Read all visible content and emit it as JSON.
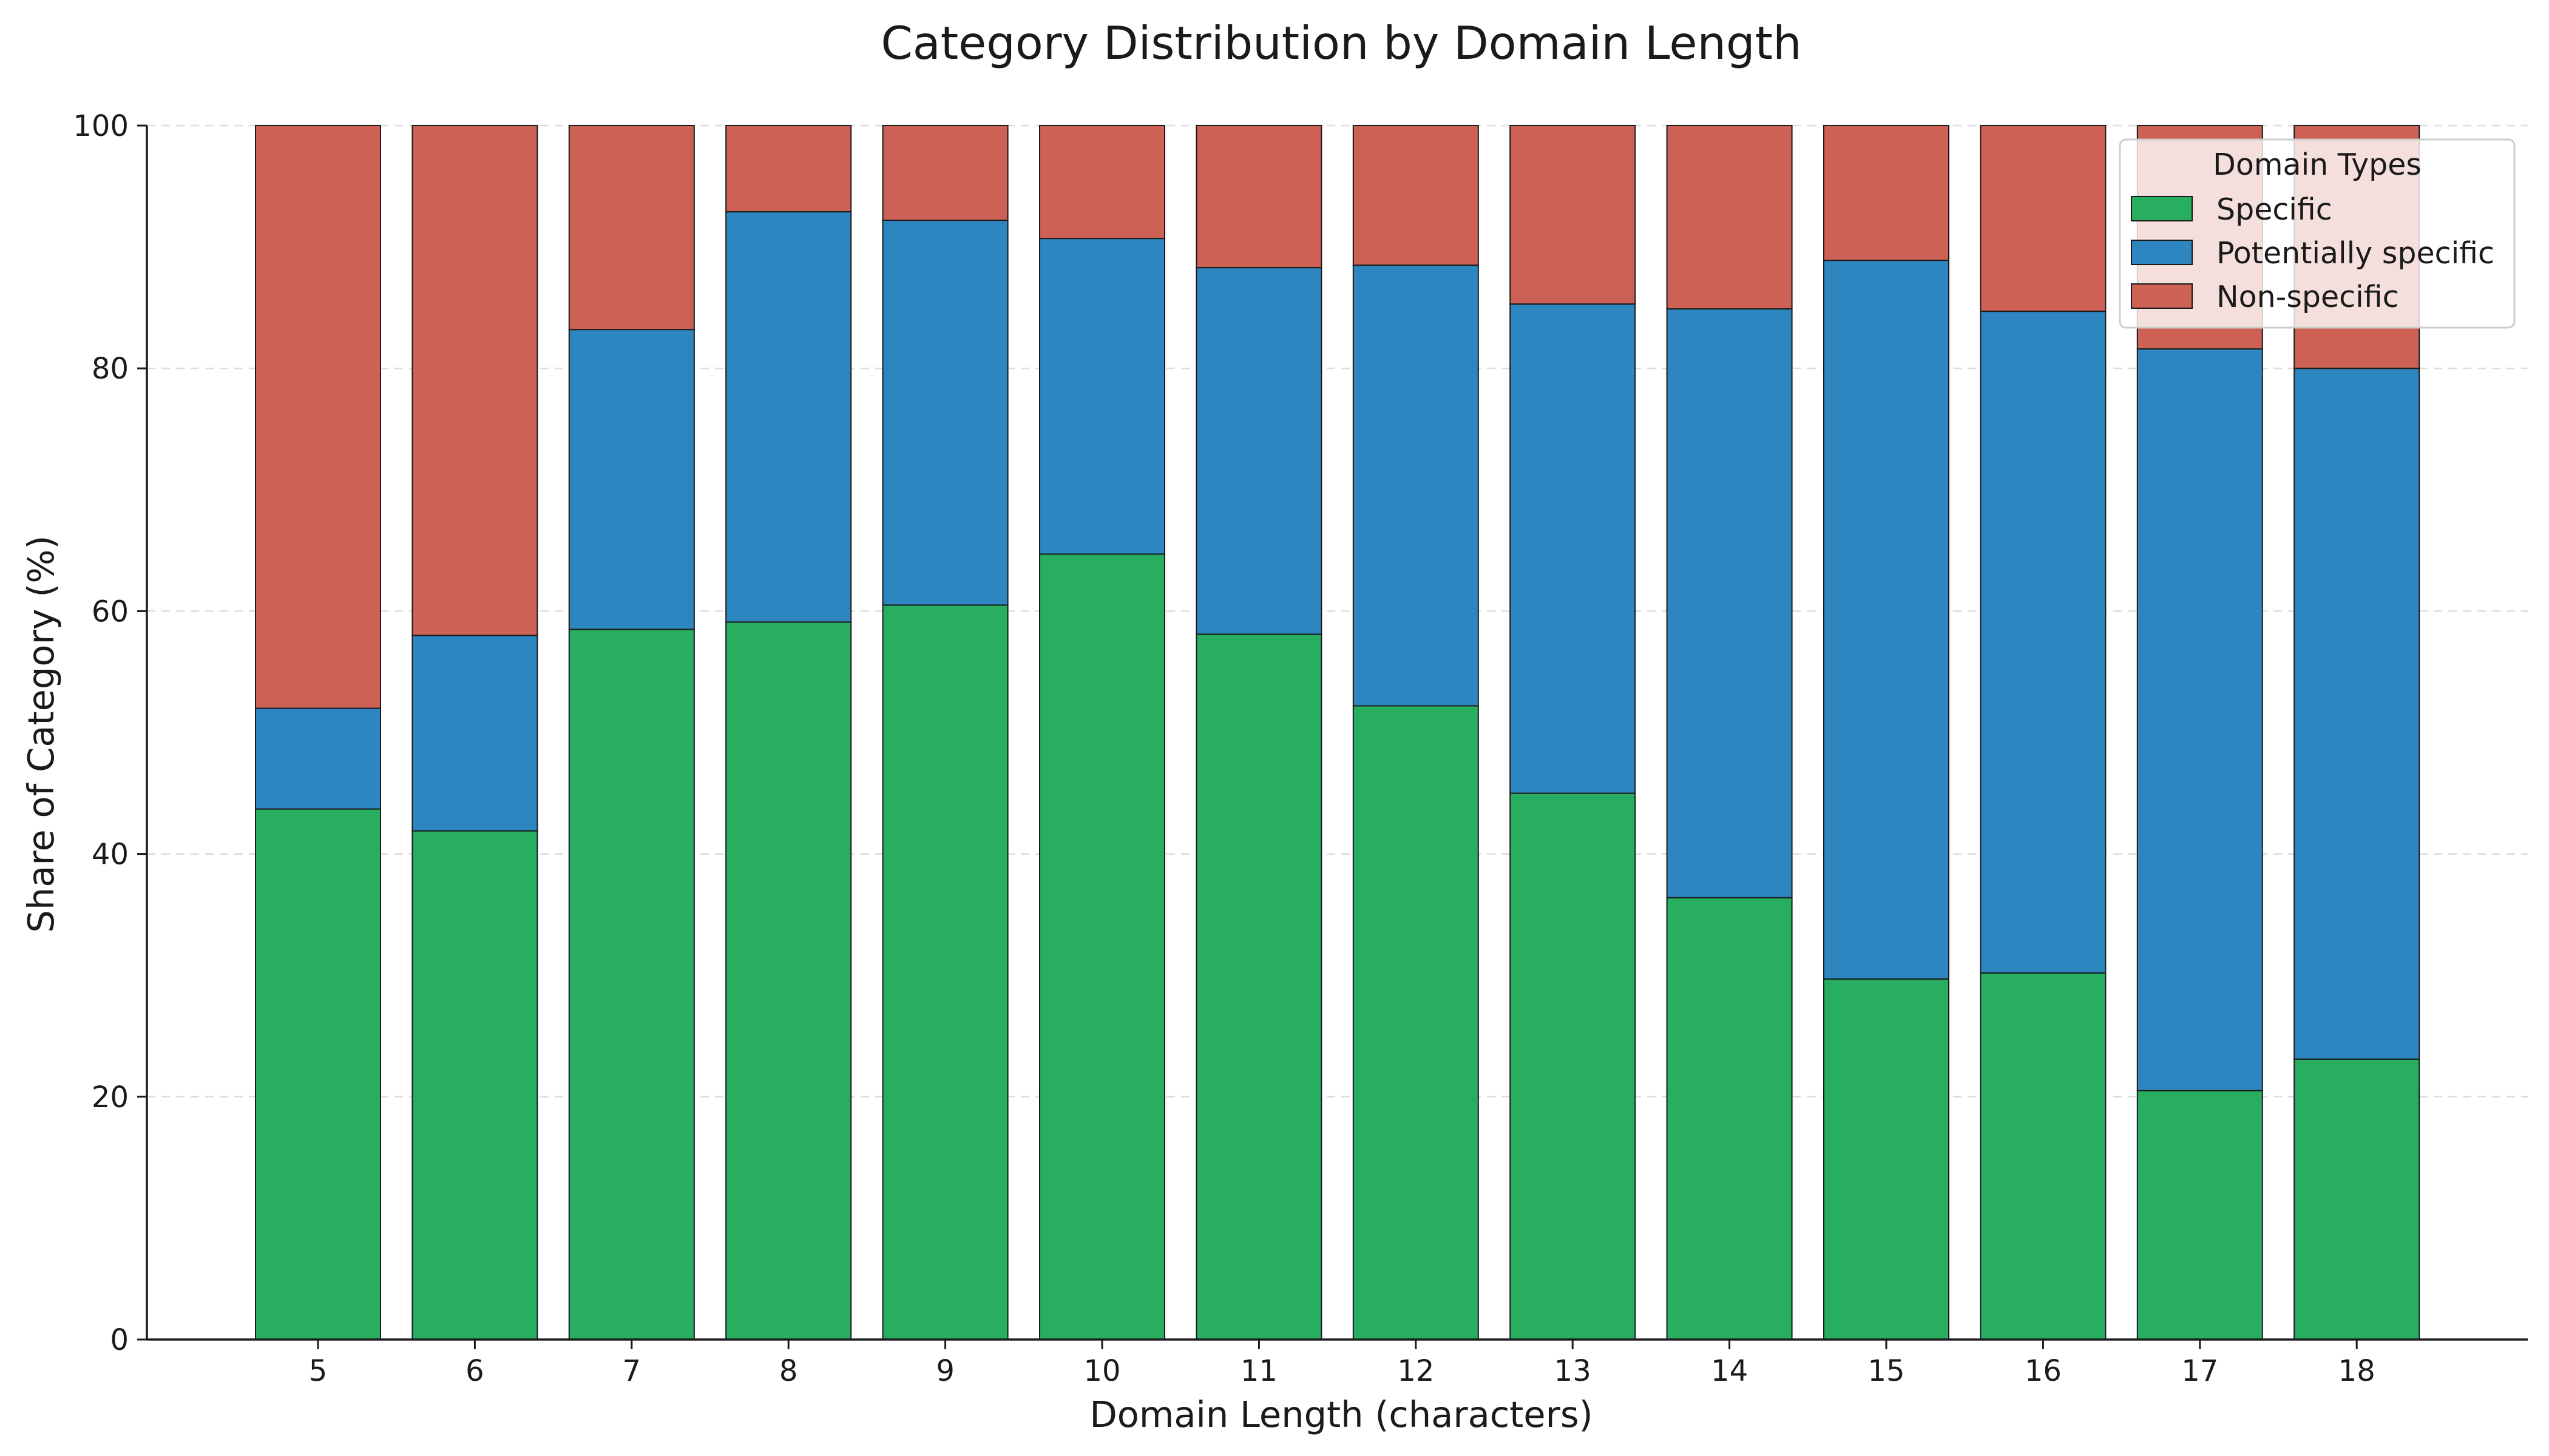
{
  "chart_data": {
    "type": "bar",
    "stacked": true,
    "title": "Category Distribution by Domain Length",
    "xlabel": "Domain Length (characters)",
    "ylabel": "Share of Category (%)",
    "categories": [
      "5",
      "6",
      "7",
      "8",
      "9",
      "10",
      "11",
      "12",
      "13",
      "14",
      "15",
      "16",
      "17",
      "18"
    ],
    "ylim": [
      0,
      100
    ],
    "yticks": [
      0,
      20,
      40,
      60,
      80,
      100
    ],
    "grid": "y dashed",
    "legend": {
      "title": "Domain Types",
      "placement": "top-right"
    },
    "series": [
      {
        "name": "Specific",
        "color": "#27ae60",
        "values": [
          43.7,
          41.9,
          58.5,
          59.1,
          60.5,
          64.7,
          58.1,
          52.2,
          45.0,
          36.4,
          29.7,
          30.2,
          20.5,
          23.1
        ]
      },
      {
        "name": "Potentially specific",
        "color": "#2e86c1",
        "values": [
          8.3,
          16.1,
          24.7,
          33.8,
          31.7,
          26.0,
          30.2,
          36.3,
          40.3,
          48.5,
          59.2,
          54.5,
          61.1,
          56.9
        ]
      },
      {
        "name": "Non-specific",
        "color": "#cd6155",
        "values": [
          48.0,
          42.0,
          16.8,
          7.1,
          7.8,
          9.3,
          11.7,
          11.5,
          14.7,
          15.1,
          11.1,
          15.3,
          18.4,
          20.0
        ]
      }
    ]
  }
}
